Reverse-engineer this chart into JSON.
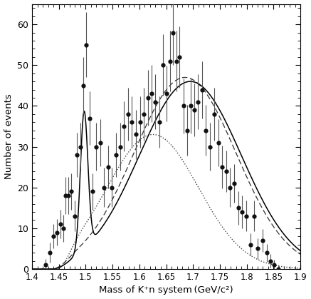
{
  "title": "",
  "xlabel": "Mass of K⁺n system (GeV/c²)",
  "ylabel": "Number of events",
  "xlim": [
    1.4,
    1.9
  ],
  "ylim": [
    0,
    65
  ],
  "xticks": [
    1.4,
    1.45,
    1.5,
    1.55,
    1.6,
    1.65,
    1.7,
    1.75,
    1.8,
    1.85,
    1.9
  ],
  "yticks": [
    0,
    10,
    20,
    30,
    40,
    50,
    60
  ],
  "data_x": [
    1.425,
    1.433,
    1.44,
    1.447,
    1.453,
    1.458,
    1.463,
    1.468,
    1.473,
    1.479,
    1.484,
    1.49,
    1.496,
    1.501,
    1.507,
    1.513,
    1.52,
    1.527,
    1.534,
    1.542,
    1.549,
    1.557,
    1.564,
    1.571,
    1.579,
    1.586,
    1.594,
    1.601,
    1.608,
    1.616,
    1.623,
    1.63,
    1.637,
    1.644,
    1.651,
    1.657,
    1.663,
    1.669,
    1.675,
    1.682,
    1.689,
    1.696,
    1.702,
    1.709,
    1.717,
    1.724,
    1.731,
    1.739,
    1.747,
    1.754,
    1.762,
    1.769,
    1.777,
    1.784,
    1.791,
    1.799,
    1.807,
    1.814,
    1.821,
    1.829,
    1.837,
    1.844,
    1.851,
    1.859
  ],
  "data_y": [
    1,
    4,
    8,
    9,
    11,
    10,
    18,
    18,
    19,
    13,
    28,
    30,
    45,
    55,
    37,
    19,
    30,
    31,
    20,
    25,
    20,
    28,
    30,
    35,
    38,
    36,
    33,
    36,
    38,
    42,
    43,
    41,
    36,
    50,
    43,
    51,
    58,
    51,
    52,
    40,
    34,
    40,
    39,
    41,
    44,
    34,
    30,
    38,
    31,
    25,
    24,
    20,
    21,
    15,
    14,
    13,
    6,
    13,
    5,
    7,
    4,
    2,
    1,
    0
  ],
  "data_yerr": [
    1.5,
    2.5,
    3.0,
    3.2,
    3.5,
    3.3,
    4.5,
    4.5,
    4.5,
    3.8,
    5.5,
    5.8,
    7.0,
    8.0,
    6.5,
    4.5,
    5.8,
    5.8,
    4.8,
    5.3,
    4.8,
    5.5,
    5.8,
    6.2,
    6.5,
    6.3,
    6.0,
    6.3,
    6.5,
    6.8,
    7.0,
    6.7,
    6.3,
    7.5,
    6.8,
    7.5,
    8.0,
    7.5,
    7.5,
    6.7,
    6.2,
    6.7,
    6.5,
    6.7,
    7.0,
    6.2,
    5.8,
    6.5,
    5.8,
    5.3,
    5.1,
    4.8,
    4.8,
    4.1,
    4.0,
    3.8,
    2.7,
    3.8,
    2.5,
    2.8,
    2.2,
    1.6,
    1.3,
    1.0
  ],
  "background_color": "#ffffff",
  "point_color": "#111111",
  "point_size": 4.5,
  "ecolor": "#555555",
  "solid_color": "#000000",
  "dashed_color": "#333333",
  "dotted_color": "#444444"
}
